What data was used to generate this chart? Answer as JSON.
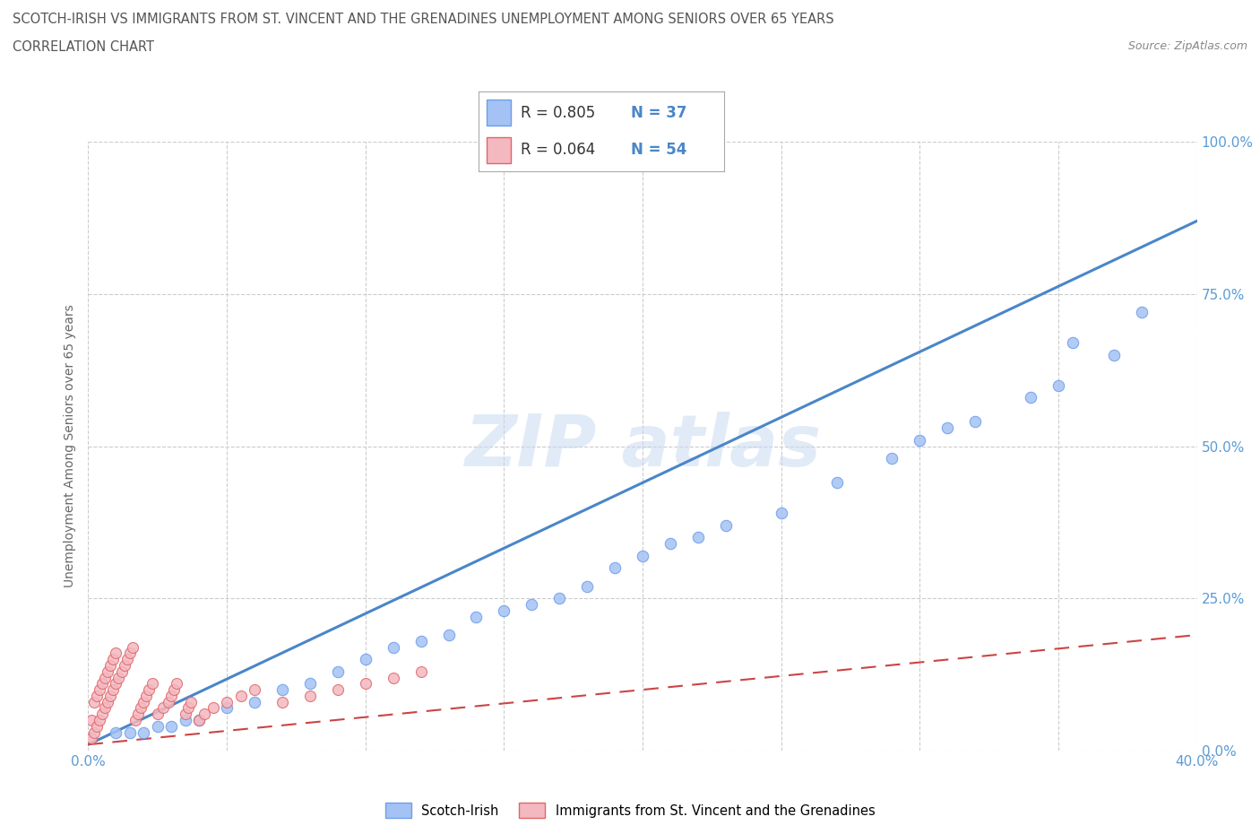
{
  "title_line1": "SCOTCH-IRISH VS IMMIGRANTS FROM ST. VINCENT AND THE GRENADINES UNEMPLOYMENT AMONG SENIORS OVER 65 YEARS",
  "title_line2": "CORRELATION CHART",
  "source_text": "Source: ZipAtlas.com",
  "ylabel": "Unemployment Among Seniors over 65 years",
  "xmin": 0.0,
  "xmax": 0.4,
  "ymin": 0.0,
  "ymax": 1.0,
  "ytick_labels": [
    "0.0%",
    "25.0%",
    "50.0%",
    "75.0%",
    "100.0%"
  ],
  "ytick_values": [
    0.0,
    0.25,
    0.5,
    0.75,
    1.0
  ],
  "blue_color": "#a4c2f4",
  "pink_color": "#f4b8c1",
  "blue_edge_color": "#6d9eeb",
  "pink_edge_color": "#e06666",
  "blue_line_color": "#4a86c8",
  "pink_line_color": "#cc4444",
  "legend_R_blue": "0.805",
  "legend_N_blue": "37",
  "legend_R_pink": "0.064",
  "legend_N_pink": "54",
  "blue_trend_x": [
    0.0,
    0.4
  ],
  "blue_trend_y": [
    0.01,
    0.87
  ],
  "pink_trend_x": [
    0.0,
    0.4
  ],
  "pink_trend_y": [
    0.01,
    0.19
  ],
  "background_color": "#ffffff",
  "grid_color": "#cccccc",
  "watermark_color": "#c5d8f0",
  "watermark_alpha": 0.5
}
